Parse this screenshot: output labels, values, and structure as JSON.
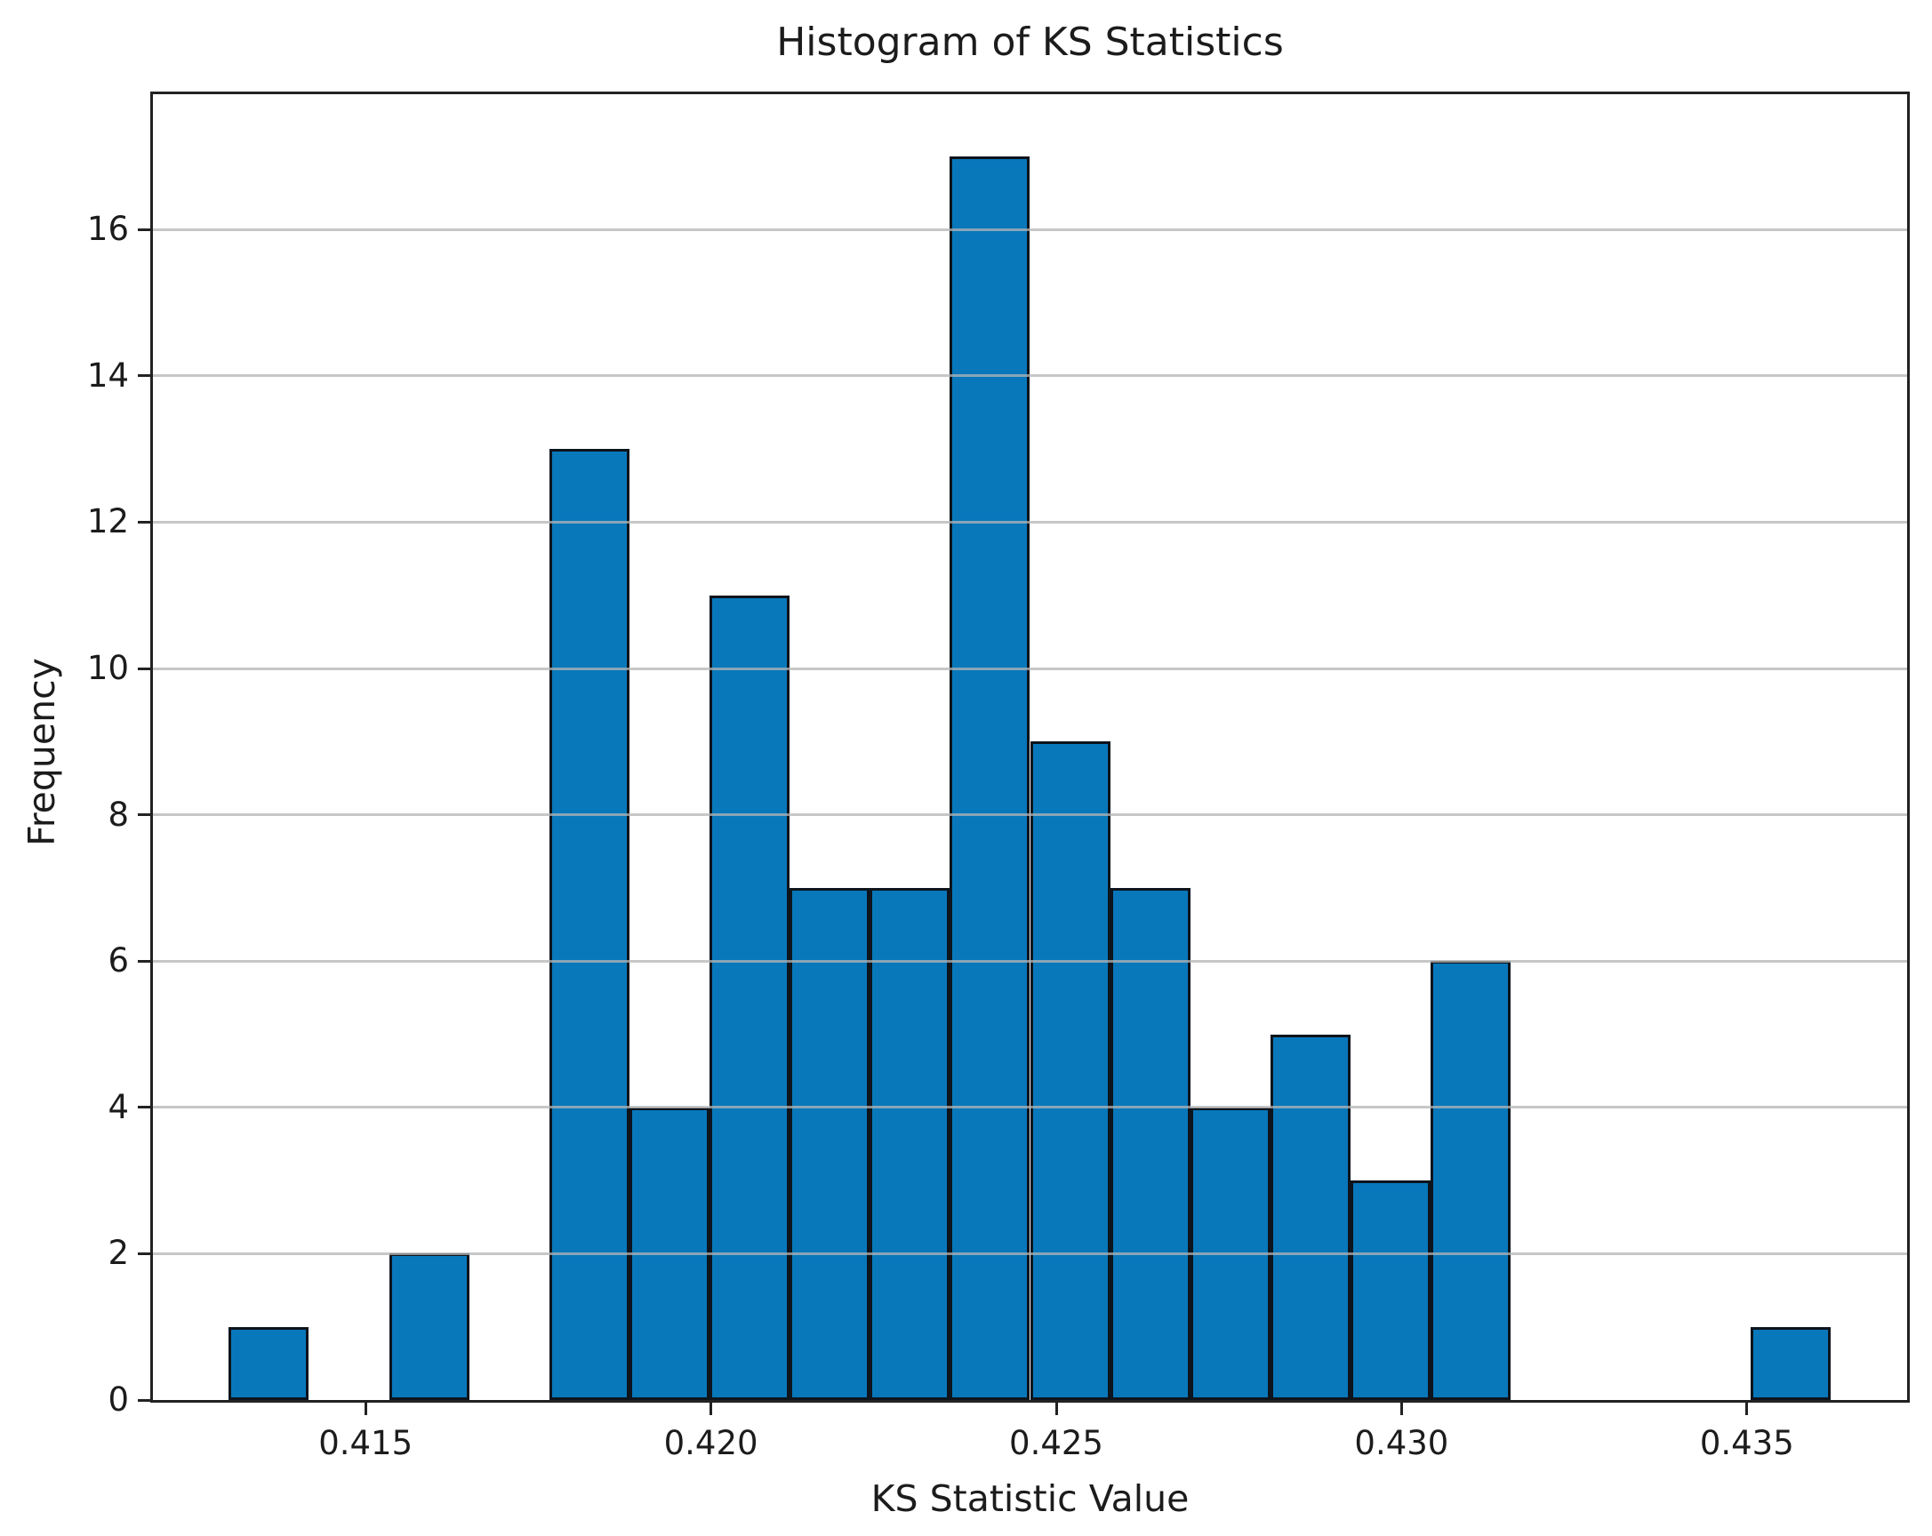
{
  "page": {
    "background": "#ffffff"
  },
  "chart_data": {
    "type": "bar",
    "subtype": "histogram",
    "title": "Histogram of KS Statistics",
    "xlabel": "KS Statistic Value",
    "ylabel": "Frequency",
    "bin_edges": [
      0.41302,
      0.41418,
      0.41534,
      0.4165,
      0.41766,
      0.41882,
      0.41998,
      0.42114,
      0.4223,
      0.42346,
      0.42462,
      0.42578,
      0.42694,
      0.4281,
      0.42926,
      0.43042,
      0.43158,
      0.43274,
      0.4339,
      0.43506,
      0.43622
    ],
    "counts": [
      1,
      0,
      2,
      0,
      13,
      4,
      11,
      7,
      7,
      17,
      9,
      7,
      4,
      5,
      3,
      6,
      0,
      0,
      0,
      1
    ],
    "total_observations": 97,
    "xticks": [
      0.415,
      0.42,
      0.425,
      0.43,
      0.435
    ],
    "xtick_labels": [
      "0.415",
      "0.420",
      "0.425",
      "0.430",
      "0.435"
    ],
    "yticks": [
      0,
      2,
      4,
      6,
      8,
      10,
      12,
      14,
      16
    ],
    "ytick_labels": [
      "0",
      "2",
      "4",
      "6",
      "8",
      "10",
      "12",
      "14",
      "16"
    ],
    "xlim": [
      0.41192,
      0.43732
    ],
    "ylim": [
      0,
      17.85
    ],
    "grid": true,
    "grid_axis": "y",
    "grid_over_bars": true,
    "legend": null,
    "colors": {
      "bar_fill": "#0878bb",
      "bar_edge": "#0d141c",
      "grid": "#b4b4b4",
      "spine": "#222222",
      "text": "#1c1c1c",
      "background": "#ffffff"
    }
  }
}
